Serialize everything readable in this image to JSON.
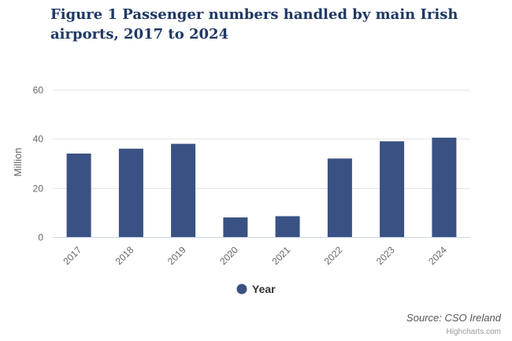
{
  "chart_data": {
    "type": "bar",
    "title": "Figure 1 Passenger numbers handled by main Irish airports, 2017 to 2024",
    "categories": [
      "2017",
      "2018",
      "2019",
      "2020",
      "2021",
      "2022",
      "2023",
      "2024"
    ],
    "series": [
      {
        "name": "Year",
        "values": [
          34,
          36,
          38,
          8,
          8.5,
          32,
          39,
          40.5
        ]
      }
    ],
    "xlabel": "",
    "ylabel": "Million",
    "ylim": [
      0,
      60
    ],
    "yticks": [
      0,
      20,
      40,
      60
    ],
    "grid": true,
    "legend": "bottom-center",
    "colors": {
      "bar": "#3a5283",
      "grid": "#e6e6e6",
      "axis": "#ccd6eb",
      "tick_text": "#666666",
      "title": "#1f3864"
    }
  },
  "footer": {
    "source": "Source: CSO Ireland",
    "credits": "Highcharts.com"
  }
}
